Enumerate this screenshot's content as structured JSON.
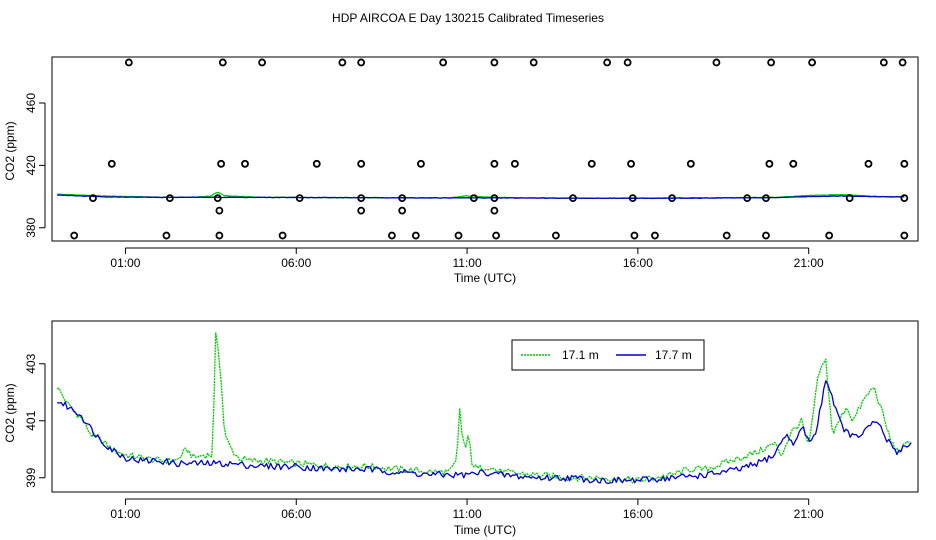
{
  "page_title": "HDP AIRCOA E  Day 130215  Calibrated Timeseries",
  "chart_data": [
    {
      "type": "scatter",
      "title": "",
      "xlabel": "Time (UTC)",
      "ylabel": "CO2 (ppm)",
      "x_unit": "hour of day (UTC)",
      "xlim": [
        -1.15,
        24.2
      ],
      "ylim": [
        371.5,
        489.5
      ],
      "x_ticks": [
        1,
        6,
        11,
        16,
        21
      ],
      "x_tick_labels": [
        "01:00",
        "06:00",
        "11:00",
        "16:00",
        "21:00"
      ],
      "y_ticks": [
        380,
        420,
        460
      ],
      "y_tick_labels": [
        "380",
        "420",
        "460"
      ],
      "grid": false,
      "points": {
        "marker_color": "#000000",
        "y": [
          375,
          391,
          399,
          421,
          486
        ],
        "x_by_level": [
          [
            -0.5,
            2.2,
            3.75,
            5.6,
            8.8,
            9.5,
            10.75,
            11.85,
            13.6,
            15.9,
            16.5,
            18.6,
            19.75,
            21.6,
            23.8
          ],
          [
            3.75,
            7.9,
            9.1,
            11.8
          ],
          [
            0.05,
            2.3,
            3.7,
            6.1,
            7.9,
            9.1,
            11.2,
            11.8,
            14.1,
            15.85,
            17.0,
            19.2,
            19.75,
            22.2,
            23.8
          ],
          [
            0.6,
            3.8,
            4.5,
            6.6,
            7.9,
            9.65,
            11.8,
            12.4,
            14.65,
            15.8,
            17.55,
            19.85,
            20.55,
            22.75,
            23.8
          ],
          [
            1.1,
            3.85,
            5.0,
            7.35,
            7.9,
            10.3,
            11.8,
            12.95,
            15.1,
            15.7,
            18.3,
            19.9,
            21.1,
            23.2,
            23.75
          ]
        ]
      },
      "series": [
        {
          "name": "17.1 m",
          "color": "#00cc00",
          "x": [
            -1,
            0.5,
            2,
            3,
            3.5,
            3.7,
            3.9,
            5,
            7,
            9,
            10.5,
            11,
            12,
            14,
            16,
            18,
            20,
            21.2,
            22,
            23,
            23.8
          ],
          "y": [
            401.5,
            400.3,
            399.6,
            399.6,
            400.3,
            403,
            400.5,
            399.5,
            399.3,
            399.2,
            399.1,
            400.5,
            399.3,
            399.0,
            399.0,
            399.2,
            399.5,
            400.8,
            401.3,
            400.0,
            399.9
          ]
        },
        {
          "name": "17.7 m",
          "color": "#0000cc",
          "x": [
            -1,
            0.5,
            2,
            3,
            4,
            6,
            8,
            10,
            11,
            12,
            14,
            16,
            18,
            20,
            21,
            22,
            23,
            23.8
          ],
          "y": [
            401.0,
            399.8,
            399.5,
            399.5,
            399.5,
            399.4,
            399.3,
            399.1,
            399.2,
            399.1,
            399.0,
            398.9,
            399.0,
            399.3,
            400.0,
            400.3,
            399.9,
            399.8
          ]
        }
      ]
    },
    {
      "type": "line",
      "title": "",
      "xlabel": "Time (UTC)",
      "ylabel": "CO2 (ppm)",
      "x_unit": "hour of day (UTC)",
      "xlim": [
        -1.15,
        24.2
      ],
      "ylim": [
        398.5,
        404.5
      ],
      "x_ticks": [
        1,
        6,
        11,
        16,
        21
      ],
      "x_tick_labels": [
        "01:00",
        "06:00",
        "11:00",
        "16:00",
        "21:00"
      ],
      "y_ticks": [
        399,
        401,
        403
      ],
      "y_tick_labels": [
        "399",
        "401",
        "403"
      ],
      "grid": false,
      "legend": {
        "position": "top-center-right"
      },
      "series": [
        {
          "name": "17.1 m",
          "color": "#00cc00",
          "x": [
            -1,
            -0.7,
            -0.3,
            0,
            0.3,
            0.6,
            1,
            1.5,
            2,
            2.5,
            2.8,
            3,
            3.3,
            3.55,
            3.65,
            3.8,
            3.9,
            4.1,
            4.3,
            4.6,
            5,
            6,
            7,
            8,
            9,
            10,
            10.5,
            10.7,
            10.8,
            10.85,
            10.95,
            11.05,
            11.15,
            11.3,
            11.6,
            12,
            13,
            14,
            15,
            16,
            17,
            17.5,
            18,
            18.5,
            19,
            19.5,
            20,
            20.2,
            20.5,
            20.8,
            21,
            21.1,
            21.3,
            21.5,
            21.7,
            21.9,
            22.1,
            22.3,
            22.6,
            22.9,
            23.1,
            23.4,
            23.6,
            23.8,
            24.0
          ],
          "y": [
            402.2,
            401.6,
            401.1,
            400.5,
            400.3,
            400.0,
            399.8,
            399.7,
            399.6,
            399.6,
            400.0,
            399.7,
            399.8,
            399.8,
            404.3,
            402.5,
            400.5,
            400.0,
            399.7,
            399.6,
            399.6,
            399.5,
            399.4,
            399.4,
            399.3,
            399.2,
            399.2,
            399.6,
            401.7,
            400.5,
            400.0,
            400.5,
            399.5,
            399.3,
            399.4,
            399.2,
            399.1,
            399.0,
            399.0,
            398.9,
            399.1,
            399.3,
            399.3,
            399.5,
            399.7,
            399.9,
            400.2,
            399.8,
            400.6,
            401.0,
            400.0,
            401.0,
            402.7,
            403.1,
            400.5,
            401.0,
            401.5,
            401.0,
            401.7,
            402.2,
            401.5,
            400.3,
            399.9,
            400.1,
            400.3
          ]
        },
        {
          "name": "17.7 m",
          "color": "#0000cc",
          "x": [
            -1,
            -0.7,
            -0.3,
            0,
            0.3,
            0.6,
            1,
            1.5,
            2,
            2.5,
            3,
            3.5,
            4,
            5,
            6,
            7,
            8,
            9,
            10,
            10.5,
            11,
            11.5,
            12,
            13,
            14,
            15,
            16,
            17,
            18,
            19,
            19.5,
            20,
            20.3,
            20.6,
            20.8,
            21,
            21.2,
            21.4,
            21.5,
            21.7,
            21.9,
            22.1,
            22.4,
            22.7,
            23,
            23.3,
            23.6,
            23.8,
            24.0
          ],
          "y": [
            401.7,
            401.5,
            401.2,
            400.7,
            400.3,
            400.0,
            399.7,
            399.6,
            399.6,
            399.5,
            399.5,
            399.5,
            399.5,
            399.4,
            399.4,
            399.3,
            399.3,
            399.2,
            399.1,
            399.1,
            399.1,
            399.2,
            399.1,
            399.0,
            399.0,
            398.9,
            398.9,
            399.0,
            399.1,
            399.3,
            399.5,
            399.8,
            400.5,
            400.2,
            400.8,
            400.3,
            400.5,
            401.8,
            402.5,
            401.8,
            401.0,
            400.6,
            400.4,
            400.7,
            401.0,
            400.3,
            399.9,
            400.1,
            400.2
          ]
        }
      ]
    }
  ]
}
